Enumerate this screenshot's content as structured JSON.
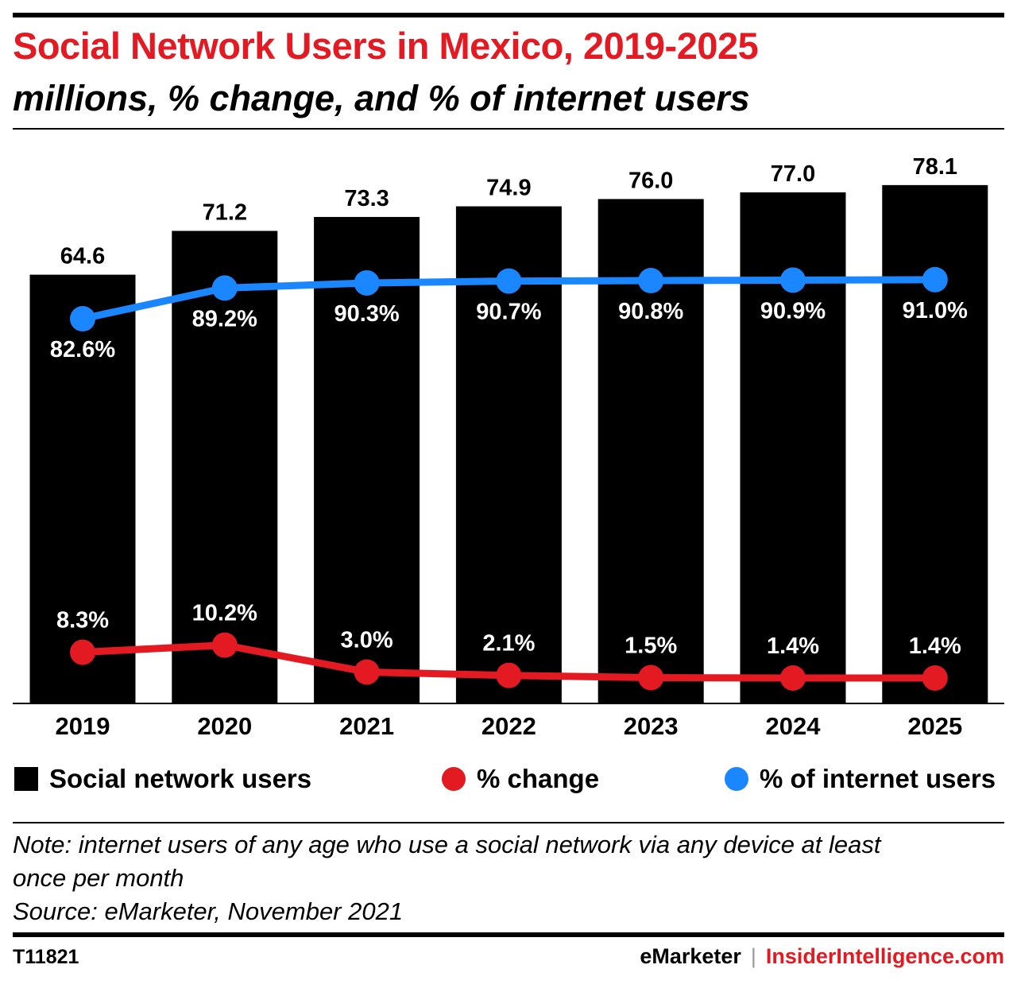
{
  "header": {
    "title": "Social Network Users in Mexico, 2019-2025",
    "subtitle": "millions, % change, and % of internet users"
  },
  "chart_data": {
    "type": "bar",
    "categories": [
      "2019",
      "2020",
      "2021",
      "2022",
      "2023",
      "2024",
      "2025"
    ],
    "series": [
      {
        "name": "Social network users",
        "type": "bar",
        "color": "#000000",
        "values": [
          64.6,
          71.2,
          73.3,
          74.9,
          76.0,
          77.0,
          78.1
        ],
        "labels": [
          "64.6",
          "71.2",
          "73.3",
          "74.9",
          "76.0",
          "77.0",
          "78.1"
        ]
      },
      {
        "name": "% change",
        "type": "line",
        "color": "#e41a22",
        "values": [
          8.3,
          10.2,
          3.0,
          2.1,
          1.5,
          1.4,
          1.4
        ],
        "labels": [
          "8.3%",
          "10.2%",
          "3.0%",
          "2.1%",
          "1.5%",
          "1.4%",
          "1.4%"
        ]
      },
      {
        "name": "% of internet users",
        "type": "line",
        "color": "#1a86ff",
        "values": [
          82.6,
          89.2,
          90.3,
          90.7,
          90.8,
          90.9,
          91.0
        ],
        "labels": [
          "82.6%",
          "89.2%",
          "90.3%",
          "90.7%",
          "90.8%",
          "90.9%",
          "91.0%"
        ]
      }
    ],
    "legend_position": "bottom",
    "grid": false
  },
  "legend": {
    "items": [
      {
        "label": "Social network users",
        "marker": "square",
        "color": "#000000"
      },
      {
        "label": "% change",
        "marker": "circle",
        "color": "#e41a22"
      },
      {
        "label": "% of internet users",
        "marker": "circle",
        "color": "#1a86ff"
      }
    ]
  },
  "notes": {
    "note_line1": "Note: internet users of any age who use a social network via any device at least",
    "note_line2": "once per month",
    "source": "Source: eMarketer, November 2021"
  },
  "footer": {
    "id": "T11821",
    "brand_left": "eMarketer",
    "separator": "|",
    "brand_right": "InsiderIntelligence.com"
  }
}
